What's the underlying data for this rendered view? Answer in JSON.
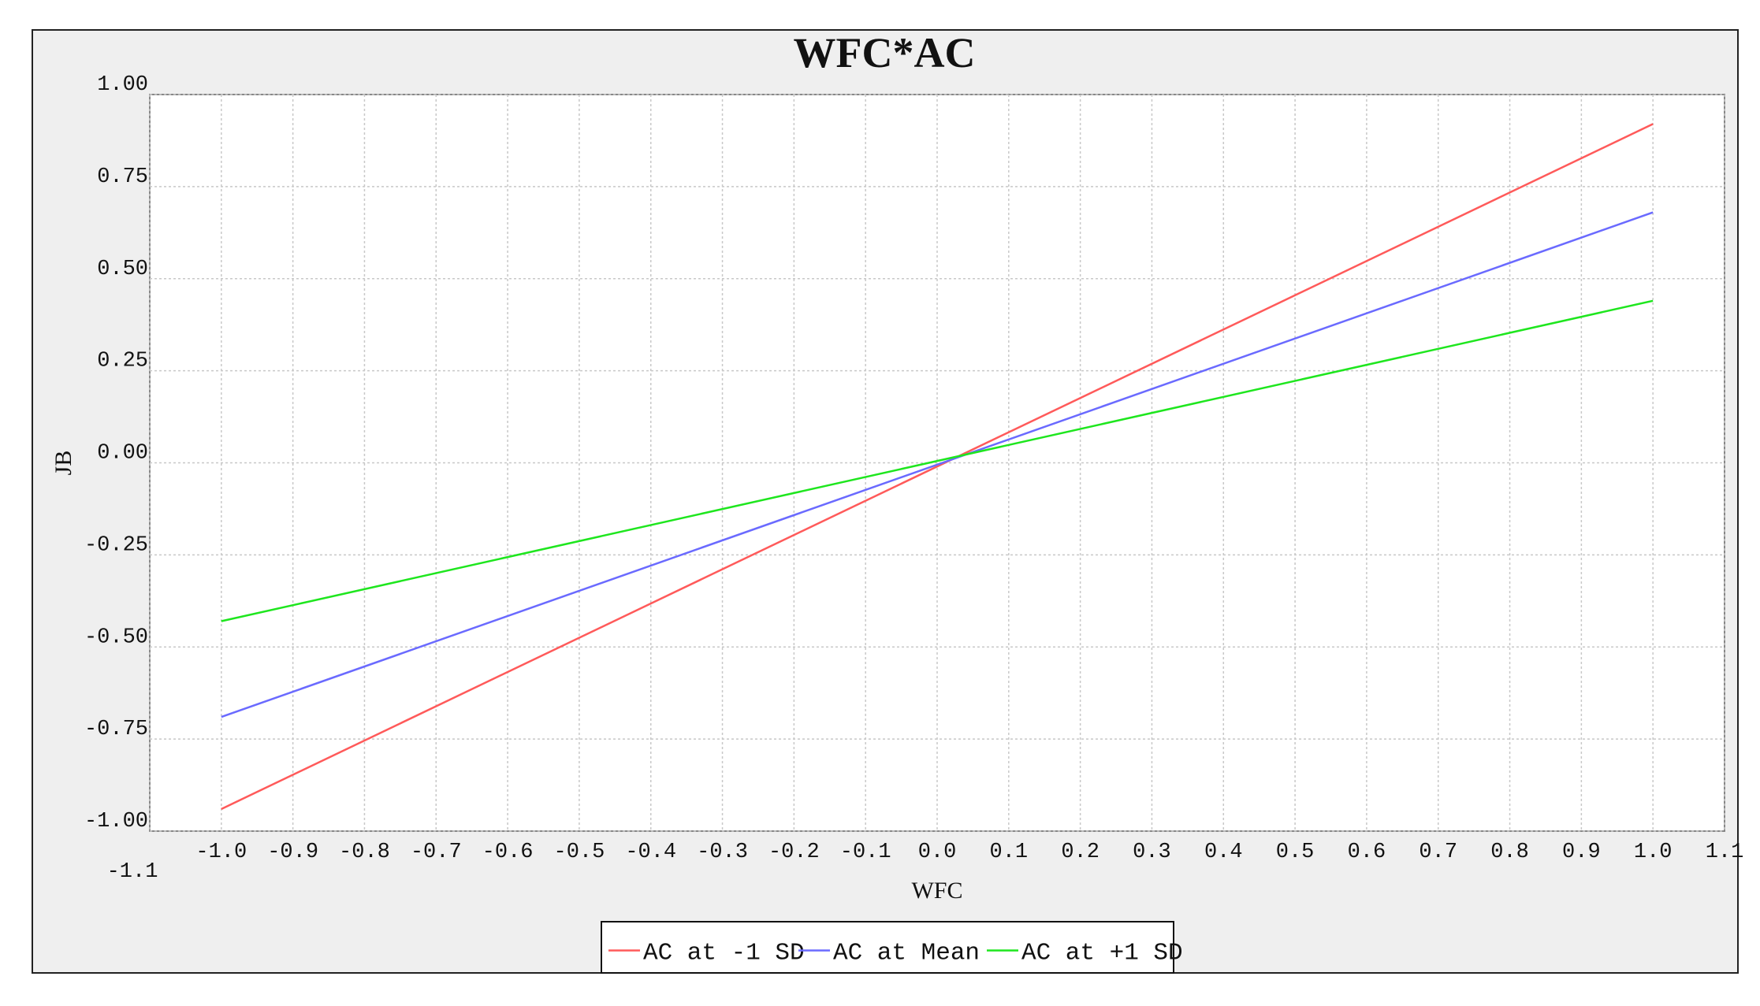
{
  "chart_data": {
    "type": "line",
    "title": "WFC*AC",
    "xlabel": "WFC",
    "ylabel": "JB",
    "xlim": [
      -1.1,
      1.1
    ],
    "ylim": [
      -1.0,
      1.0
    ],
    "x_ticks": [
      "-1.1",
      "-1.0",
      "-0.9",
      "-0.8",
      "-0.7",
      "-0.6",
      "-0.5",
      "-0.4",
      "-0.3",
      "-0.2",
      "-0.1",
      "0.0",
      "0.1",
      "0.2",
      "0.3",
      "0.4",
      "0.5",
      "0.6",
      "0.7",
      "0.8",
      "0.9",
      "1.0",
      "1.1"
    ],
    "y_ticks": [
      "1.00",
      "0.75",
      "0.50",
      "0.25",
      "0.00",
      "-0.25",
      "-0.50",
      "-0.75",
      "-1.00"
    ],
    "grid": true,
    "legend": "bottom",
    "series": [
      {
        "name": "AC at -1 SD",
        "color": "#ff5a5a",
        "x": [
          -1.0,
          1.0
        ],
        "y": [
          -0.94,
          0.92
        ]
      },
      {
        "name": "AC at Mean",
        "color": "#6a6aff",
        "x": [
          -1.0,
          1.0
        ],
        "y": [
          -0.69,
          0.68
        ]
      },
      {
        "name": "AC at +1 SD",
        "color": "#1ee61e",
        "x": [
          -1.0,
          1.0
        ],
        "y": [
          -0.43,
          0.44
        ]
      }
    ]
  }
}
